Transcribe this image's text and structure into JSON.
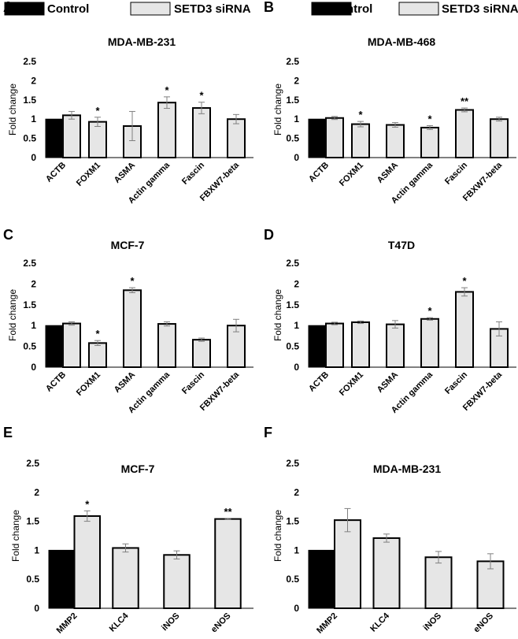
{
  "legend": [
    {
      "label": "Control",
      "color": "#000000"
    },
    {
      "label": "SETD3 siRNA",
      "color": "#e6e6e6"
    }
  ],
  "colors": {
    "control": "#000000",
    "setd3": "#e6e6e6",
    "stroke": "#000000",
    "error": "#808080"
  },
  "chart_data": [
    {
      "panel": "A",
      "type": "bar",
      "title": "MDA-MB-231",
      "ylabel": "Fold change",
      "ylim": [
        0,
        2.5
      ],
      "yticks": [
        "0",
        "0.5",
        "1",
        "1.5",
        "2",
        "2.5"
      ],
      "grid": false,
      "categories": [
        "ACTB",
        "FOXM1",
        "ASMA",
        "Actin gamma",
        "Fascin",
        "FBXW7-beta"
      ],
      "series": [
        {
          "name": "Control",
          "values": [
            1.0,
            null,
            null,
            null,
            null,
            null
          ]
        },
        {
          "name": "SETD3 siRNA",
          "values": [
            1.1,
            0.93,
            0.82,
            1.43,
            1.29,
            1.0
          ],
          "errors": [
            0.1,
            0.12,
            0.38,
            0.15,
            0.15,
            0.12
          ]
        }
      ],
      "significance": [
        "",
        "*",
        "",
        "*",
        "*",
        ""
      ]
    },
    {
      "panel": "B",
      "type": "bar",
      "title": "MDA-MB-468",
      "ylabel": "Fold change",
      "ylim": [
        0,
        2.5
      ],
      "yticks": [
        "0",
        "0.5",
        "1",
        "1.5",
        "2",
        "2.5"
      ],
      "grid": false,
      "categories": [
        "ACTB",
        "FOXM1",
        "ASMA",
        "Actin gamma",
        "Fascin",
        "FBXW7-beta"
      ],
      "series": [
        {
          "name": "Control",
          "values": [
            1.0,
            null,
            null,
            null,
            null,
            null
          ]
        },
        {
          "name": "SETD3 siRNA",
          "values": [
            1.03,
            0.87,
            0.85,
            0.78,
            1.24,
            1.0
          ],
          "errors": [
            0.04,
            0.07,
            0.06,
            0.05,
            0.05,
            0.05
          ]
        }
      ],
      "significance": [
        "",
        "*",
        "",
        "*",
        "**",
        ""
      ]
    },
    {
      "panel": "C",
      "type": "bar",
      "title": "MCF-7",
      "ylabel": "Fold change",
      "ylim": [
        0,
        2.5
      ],
      "yticks": [
        "0",
        "0.5",
        "1",
        "1.5",
        "2",
        "2.5"
      ],
      "grid": false,
      "categories": [
        "ACTB",
        "FOXM1",
        "ASMA",
        "Actin gamma",
        "Fascin",
        "FBXW7-beta"
      ],
      "series": [
        {
          "name": "Control",
          "values": [
            1.0,
            null,
            null,
            null,
            null,
            null
          ]
        },
        {
          "name": "SETD3 siRNA",
          "values": [
            1.05,
            0.58,
            1.85,
            1.04,
            0.66,
            1.0
          ],
          "errors": [
            0.04,
            0.06,
            0.06,
            0.05,
            0.04,
            0.15
          ]
        }
      ],
      "significance": [
        "",
        "*",
        "*",
        "",
        "",
        ""
      ]
    },
    {
      "panel": "D",
      "type": "bar",
      "title": "T47D",
      "ylabel": "Fold change",
      "ylim": [
        0,
        2.5
      ],
      "yticks": [
        "0",
        "0.5",
        "1",
        "1.5",
        "2",
        "2.5"
      ],
      "grid": false,
      "categories": [
        "ACTB",
        "FOXM1",
        "ASMA",
        "Actin gamma",
        "Fascin",
        "FBXW7-beta"
      ],
      "series": [
        {
          "name": "Control",
          "values": [
            1.0,
            null,
            null,
            null,
            null,
            null
          ]
        },
        {
          "name": "SETD3 siRNA",
          "values": [
            1.05,
            1.08,
            1.03,
            1.16,
            1.81,
            0.92
          ],
          "errors": [
            0.03,
            0.03,
            0.09,
            0.03,
            0.1,
            0.17
          ]
        }
      ],
      "significance": [
        "",
        "",
        "",
        "*",
        "*",
        ""
      ]
    },
    {
      "panel": "E",
      "type": "bar",
      "title": "MCF-7",
      "ylabel": "Fold change",
      "ylim": [
        0,
        2.5
      ],
      "yticks": [
        "0",
        "0.5",
        "1",
        "1.5",
        "2",
        "2.5"
      ],
      "grid": false,
      "categories": [
        "MMP2",
        "KLC4",
        "iNOS",
        "eNOS"
      ],
      "series": [
        {
          "name": "Control",
          "values": [
            1.0,
            null,
            null,
            null
          ]
        },
        {
          "name": "SETD3 siRNA",
          "values": [
            1.59,
            1.04,
            0.92,
            1.54
          ],
          "errors": [
            0.09,
            0.07,
            0.07,
            0.01
          ]
        }
      ],
      "significance": [
        "*",
        "",
        "",
        "**"
      ]
    },
    {
      "panel": "F",
      "type": "bar",
      "title": "MDA-MB-231",
      "ylabel": "Fold change",
      "ylim": [
        0,
        2.5
      ],
      "yticks": [
        "0",
        "0.5",
        "1",
        "1.5",
        "2",
        "2.5"
      ],
      "grid": false,
      "categories": [
        "MMP2",
        "KLC4",
        "iNOS",
        "eNOS"
      ],
      "series": [
        {
          "name": "Control",
          "values": [
            1.0,
            null,
            null,
            null
          ]
        },
        {
          "name": "SETD3 siRNA",
          "values": [
            1.52,
            1.21,
            0.88,
            0.81
          ],
          "errors": [
            0.2,
            0.07,
            0.1,
            0.13
          ]
        }
      ],
      "significance": [
        "",
        "",
        "",
        ""
      ]
    }
  ]
}
